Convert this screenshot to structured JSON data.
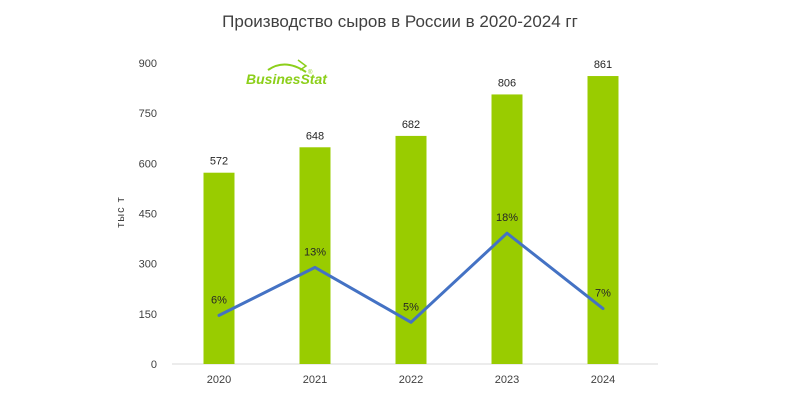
{
  "chart_data": {
    "type": "bar",
    "title": "Производство сыров в России в 2020-2024 гг",
    "ylabel": "тыс т",
    "categories": [
      "2020",
      "2021",
      "2022",
      "2023",
      "2024"
    ],
    "series": [
      {
        "values": [
          572,
          648,
          682,
          806,
          861
        ],
        "color": "#99cc00"
      }
    ],
    "growth_line": {
      "labels": [
        "6%",
        "13%",
        "5%",
        "18%",
        "7%"
      ],
      "values": [
        6,
        13,
        5,
        18,
        7
      ],
      "color": "#4472c4"
    },
    "ylim": [
      0,
      900
    ],
    "yticks": [
      0,
      150,
      300,
      450,
      600,
      750,
      900
    ],
    "grid": false,
    "legend": "none"
  },
  "logo": {
    "text": "BusinesStat",
    "mark": "®"
  }
}
